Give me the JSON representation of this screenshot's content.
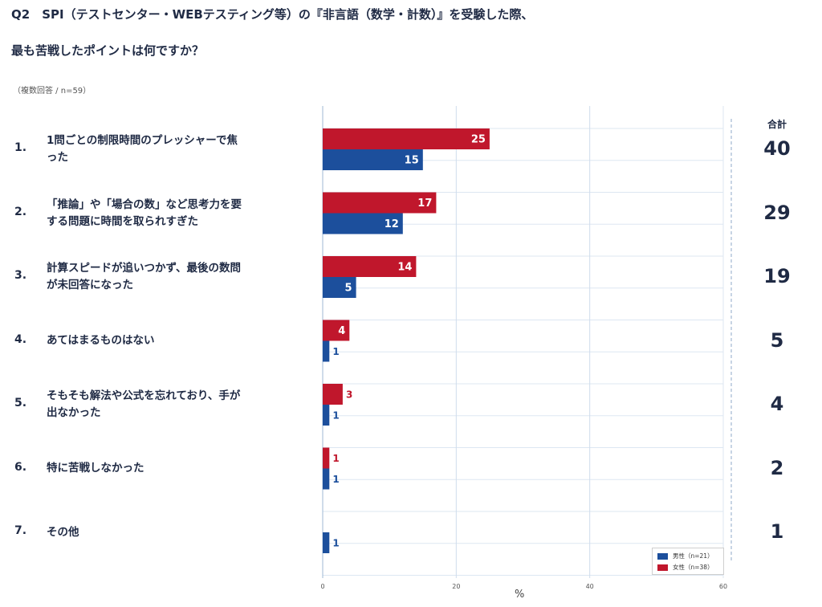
{
  "title_line1": "Q2　SPI（テストセンター・WEBテスティング等）の『非言語（数学・計数）』を受験した際、",
  "title_line2": "最も苦戦したポイントは何ですか？",
  "note": "（複数回答 / n=59）",
  "total_header": "合計",
  "chart_data": {
    "type": "bar",
    "orientation": "horizontal",
    "categories": [
      {
        "num": "1.",
        "lines": [
          "1問ごとの制限時間のプレッシャーで焦",
          "った"
        ]
      },
      {
        "num": "2.",
        "lines": [
          "「推論」や「場合の数」など思考力を要",
          "する問題に時間を取られすぎた"
        ]
      },
      {
        "num": "3.",
        "lines": [
          "計算スピードが追いつかず、最後の数問",
          "が未回答になった"
        ]
      },
      {
        "num": "4.",
        "lines": [
          "あてはまるものはない"
        ]
      },
      {
        "num": "5.",
        "lines": [
          "そもそも解法や公式を忘れており、手が",
          "出なかった"
        ]
      },
      {
        "num": "6.",
        "lines": [
          "特に苦戦しなかった"
        ]
      },
      {
        "num": "7.",
        "lines": [
          "その他"
        ]
      }
    ],
    "series": [
      {
        "name": "女性（n=38）",
        "color": "#c0172c",
        "values": [
          25,
          17,
          14,
          4,
          3,
          1,
          0
        ]
      },
      {
        "name": "男性（n=21）",
        "color": "#1c4f9c",
        "values": [
          15,
          12,
          5,
          1,
          1,
          1,
          1
        ]
      }
    ],
    "totals": [
      "40",
      "29",
      "19",
      "5",
      "4",
      "2",
      "1"
    ],
    "xlim": [
      0,
      60
    ],
    "xticks": [
      0,
      20,
      40,
      60
    ],
    "xlabel": "%",
    "legend_position": "bottom-right",
    "legend_order": [
      "男性（n=21）",
      "女性（n=38）"
    ],
    "grid": true
  }
}
